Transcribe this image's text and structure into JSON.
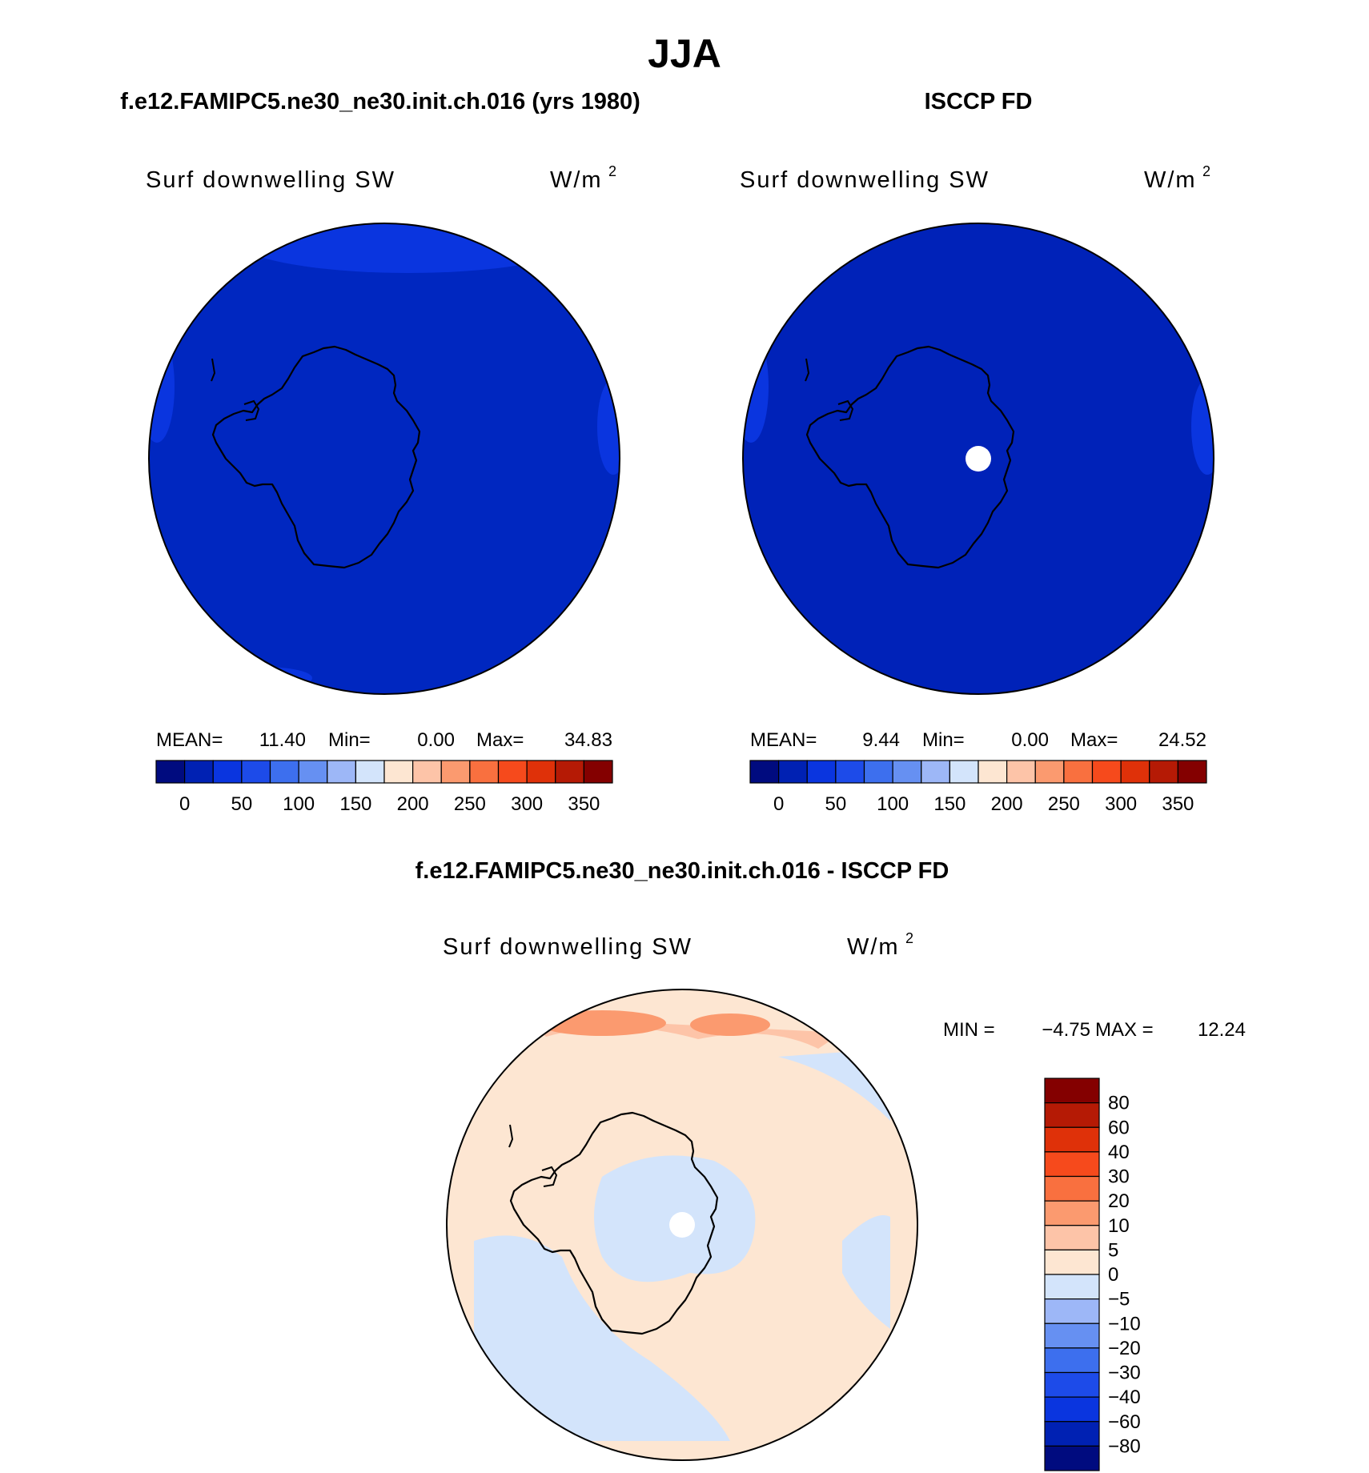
{
  "title": "JJA",
  "panels": [
    {
      "name": "model",
      "header": "f.e12.FAMIPC5.ne30_ne30.init.ch.016 (yrs 1980)",
      "variable": "Surf downwelling SW",
      "units": "W/m",
      "units_exp": "2",
      "stats": {
        "mean_label": "MEAN=",
        "mean": "11.40",
        "min_label": "Min=",
        "min": "0.00",
        "max_label": "Max=",
        "max": "34.83"
      },
      "colorbar": {
        "colors": [
          "#000b7f",
          "#0021b3",
          "#0a35df",
          "#1d4be9",
          "#3d6fee",
          "#6690f2",
          "#9db7f7",
          "#d3e4fb",
          "#fde6d2",
          "#fdc4a8",
          "#fb9a6f",
          "#f9703f",
          "#f64a1c",
          "#df3109",
          "#b51a05",
          "#840000"
        ],
        "labels": [
          "0",
          "50",
          "100",
          "150",
          "200",
          "250",
          "300",
          "350"
        ]
      }
    },
    {
      "name": "obs",
      "header": "ISCCP FD",
      "variable": "Surf downwelling SW",
      "units": "W/m",
      "units_exp": "2",
      "stats": {
        "mean_label": "MEAN=",
        "mean": "9.44",
        "min_label": "Min=",
        "min": "0.00",
        "max_label": "Max=",
        "max": "24.52"
      },
      "colorbar": {
        "colors": [
          "#000b7f",
          "#0021b3",
          "#0a35df",
          "#1d4be9",
          "#3d6fee",
          "#6690f2",
          "#9db7f7",
          "#d3e4fb",
          "#fde6d2",
          "#fdc4a8",
          "#fb9a6f",
          "#f9703f",
          "#f64a1c",
          "#df3109",
          "#b51a05",
          "#840000"
        ],
        "labels": [
          "0",
          "50",
          "100",
          "150",
          "200",
          "250",
          "300",
          "350"
        ]
      }
    }
  ],
  "diff": {
    "header": "f.e12.FAMIPC5.ne30_ne30.init.ch.016 - ISCCP FD",
    "variable": "Surf downwelling SW",
    "units": "W/m",
    "units_exp": "2",
    "stats": {
      "min_label": "MIN =",
      "min": "−4.75",
      "max_label": "MAX =",
      "max": "12.24"
    },
    "colorbar": {
      "colors": [
        "#840000",
        "#b51a05",
        "#df3109",
        "#f64a1c",
        "#f9703f",
        "#fb9a6f",
        "#fdc4a8",
        "#fde6d2",
        "#d3e4fb",
        "#9db7f7",
        "#6690f2",
        "#3d6fee",
        "#1d4be9",
        "#0a35df",
        "#0021b3",
        "#000b7f"
      ],
      "labels": [
        "80",
        "60",
        "40",
        "30",
        "20",
        "10",
        "5",
        "0",
        "−5",
        "−10",
        "−20",
        "−30",
        "−40",
        "−60",
        "−80"
      ]
    }
  },
  "colors": {
    "ocean_model": "#0027c0",
    "ocean_obs": "#0022b8",
    "ocean_light": "#0a35df",
    "diff_pos": "#fde6d2",
    "diff_pos2": "#fdc4a8",
    "diff_pos3": "#fb9a6f",
    "diff_neg": "#d3e4fb",
    "missing": "#ffffff"
  },
  "chart_data": [
    {
      "type": "heatmap",
      "projection": "south-polar-stereographic",
      "title": "f.e12.FAMIPC5.ne30_ne30.init.ch.016 (yrs 1980)",
      "variable": "Surf downwelling SW",
      "units": "W/m2",
      "mean": 11.4,
      "min": 0.0,
      "max": 34.83,
      "levels": [
        0,
        25,
        50,
        75,
        100,
        125,
        150,
        175,
        200,
        225,
        250,
        275,
        300,
        325,
        350
      ]
    },
    {
      "type": "heatmap",
      "projection": "south-polar-stereographic",
      "title": "ISCCP FD",
      "variable": "Surf downwelling SW",
      "units": "W/m2",
      "mean": 9.44,
      "min": 0.0,
      "max": 24.52,
      "levels": [
        0,
        25,
        50,
        75,
        100,
        125,
        150,
        175,
        200,
        225,
        250,
        275,
        300,
        325,
        350
      ]
    },
    {
      "type": "heatmap",
      "projection": "south-polar-stereographic",
      "title": "f.e12.FAMIPC5.ne30_ne30.init.ch.016 - ISCCP FD",
      "variable": "Surf downwelling SW",
      "units": "W/m2",
      "min": -4.75,
      "max": 12.24,
      "levels": [
        -80,
        -60,
        -40,
        -30,
        -20,
        -10,
        -5,
        0,
        5,
        10,
        20,
        30,
        40,
        60,
        80
      ]
    }
  ]
}
